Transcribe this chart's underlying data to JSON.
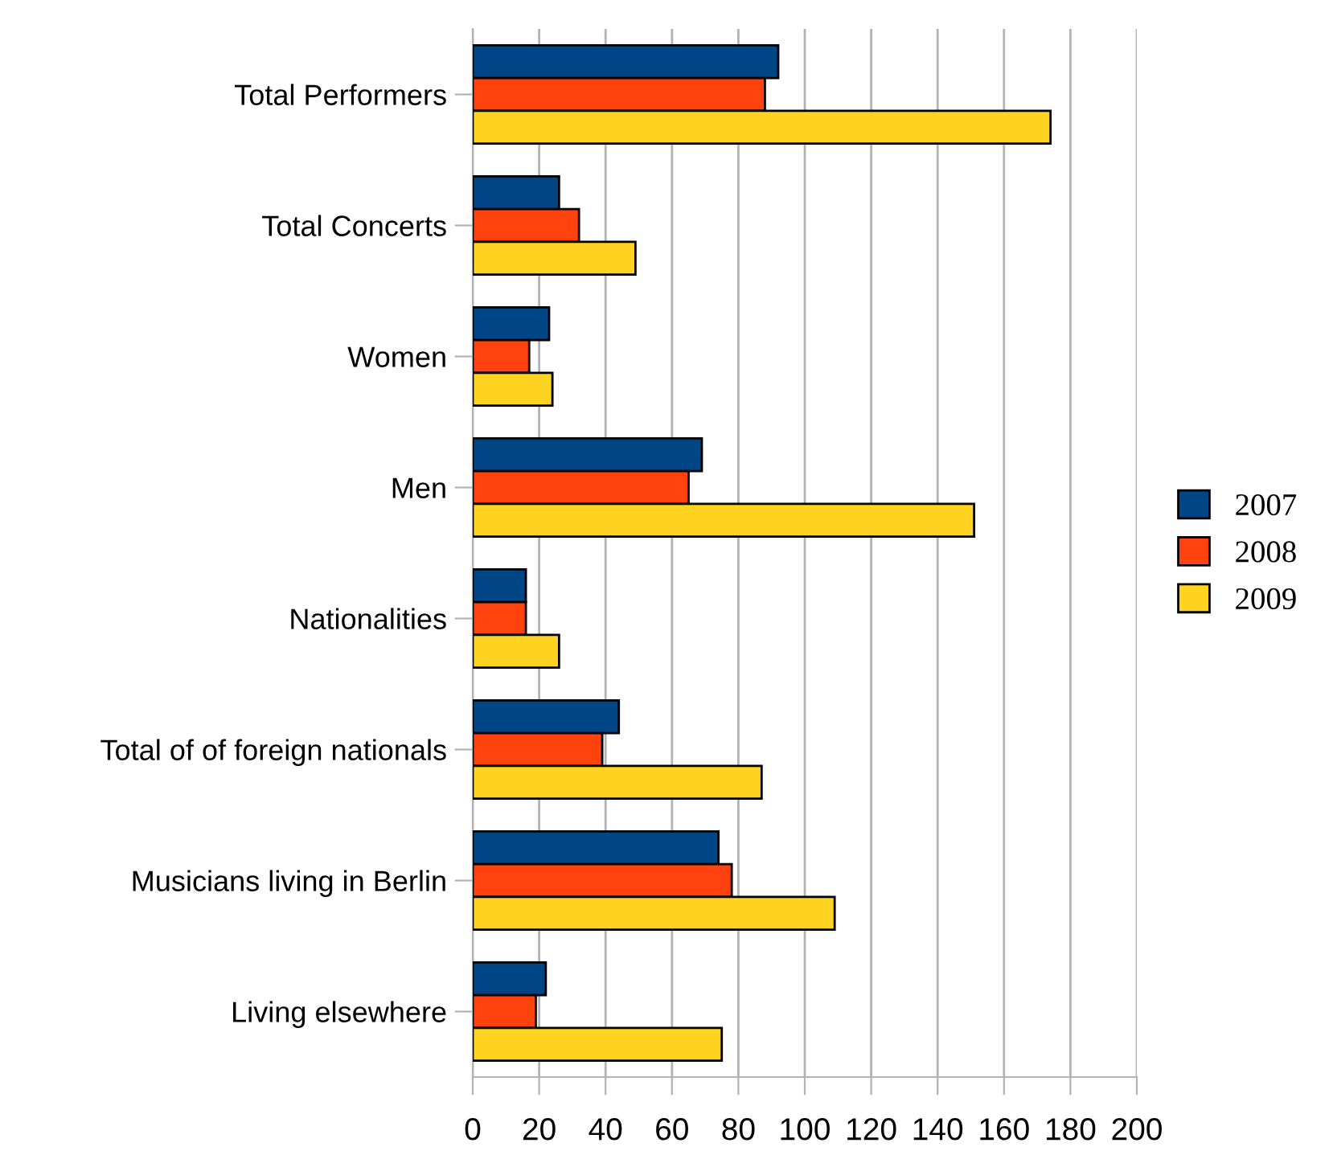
{
  "chart_data": {
    "type": "bar",
    "orientation": "horizontal",
    "categories": [
      "Total Performers",
      "Total Concerts",
      "Women",
      "Men",
      "Nationalities",
      "Total of of foreign nationals",
      "Musicians living in Berlin",
      "Living elsewhere"
    ],
    "series": [
      {
        "name": "2007",
        "color": "#004586",
        "values": [
          92,
          26,
          23,
          69,
          16,
          44,
          74,
          22
        ]
      },
      {
        "name": "2008",
        "color": "#ff420e",
        "values": [
          88,
          32,
          17,
          65,
          16,
          39,
          78,
          19
        ]
      },
      {
        "name": "2009",
        "color": "#ffd320",
        "values": [
          174,
          49,
          24,
          151,
          26,
          87,
          109,
          75
        ]
      }
    ],
    "xlim": [
      0,
      200
    ],
    "xticks": [
      0,
      20,
      40,
      60,
      80,
      100,
      120,
      140,
      160,
      180,
      200
    ],
    "grid": "x",
    "legend": "right"
  }
}
